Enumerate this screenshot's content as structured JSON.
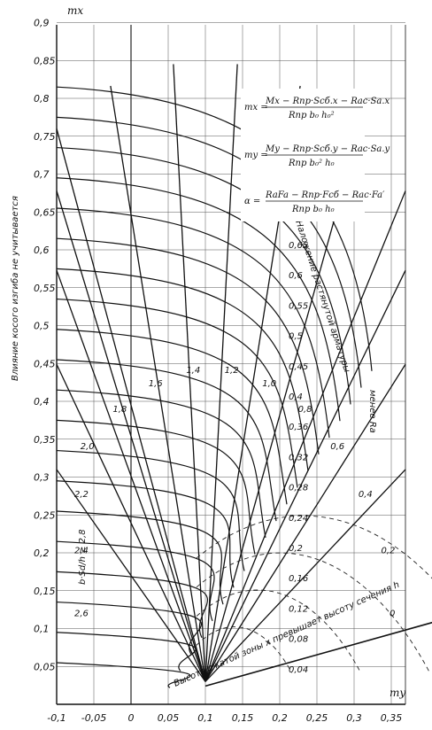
{
  "axes": {
    "y_name": "mx",
    "x_name": "my",
    "y_ticks": [
      "0,05",
      "0,1",
      "0,15",
      "0,2",
      "0,25",
      "0,3",
      "0,35",
      "0,4",
      "0,45",
      "0,5",
      "0,55",
      "0,6",
      "0,65",
      "0,7",
      "0,75",
      "0,8",
      "0,85",
      "0,9"
    ],
    "x_ticks": [
      "-0,1",
      "-0,05",
      "0",
      "0,05",
      "0,1",
      "0,15",
      "0,2",
      "0,25",
      "0,3",
      "0,35"
    ]
  },
  "alpha_labels": [
    "α=1",
    "0,9",
    "0,8",
    "0,75",
    "0,7",
    "0,65",
    "0,6",
    "0,55",
    "0,5",
    "0,45",
    "0,4",
    "0,36",
    "0,32",
    "0,28",
    "0,24",
    "0,2",
    "0,16",
    "0,12",
    "0,08",
    "0,04"
  ],
  "ratio_labels": [
    "2,6",
    "2,4",
    "2,2",
    "2,0",
    "1,8",
    "1,6",
    "1,4",
    "1,2",
    "1,0",
    "0,8",
    "0,6",
    "0,4",
    "0,2",
    "0"
  ],
  "side_text": {
    "left_vertical": "Влияние косого изгиба не учитывается",
    "right_upper": "Наложение растянутой арматуры",
    "right_lower": "менее Ra",
    "bottom_diagonal": "Высота сжатой зоны x превышает высоту сечения h",
    "left_ratio": "b·Sd/h ≥ 2,8"
  },
  "formulas": {
    "mx_lhs": "mx =",
    "mx_num": "Mx − Rпр·Sсб.x − Rас·Sa.x",
    "mx_den": "Rпр b₀ h₀²",
    "my_lhs": "my =",
    "my_num": "My − Rпр·Sсб.y − Rас·Sa.y",
    "my_den": "Rпр b₀² h₀",
    "alpha_lhs": "α =",
    "alpha_num": "RaFa − Rпр·Fсб − Rас·Fa′",
    "alpha_den": "Rпр b₀ h₀"
  }
}
